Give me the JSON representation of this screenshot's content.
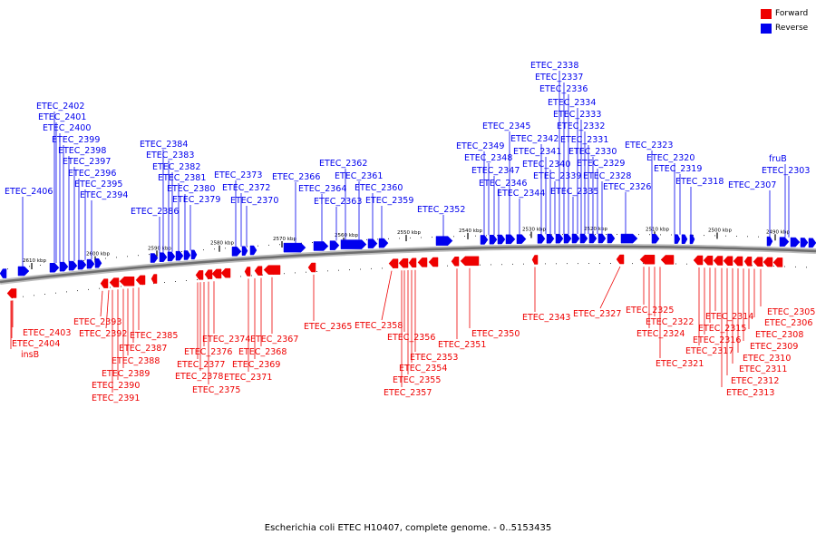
{
  "legend": [
    {
      "label": "Forward",
      "color": "#ee0000"
    },
    {
      "label": "Reverse",
      "color": "#0000ee"
    }
  ],
  "caption": "Escherichia coli ETEC H10407, complete genome. - 0..5153435",
  "colors": {
    "forward": "#ee0000",
    "reverse": "#0000ee",
    "backbone": "#808080"
  },
  "scale_ticks": [
    "2610 kbp",
    "2600 kbp",
    "2590 kbp",
    "2580 kbp",
    "2570 kbp",
    "2560 kbp",
    "2550 kbp",
    "2540 kbp",
    "2530 kbp",
    "2520 kbp",
    "2510 kbp",
    "2500 kbp",
    "2490 kbp"
  ],
  "reverse_labels": [
    "ETEC_2406",
    "ETEC_2402",
    "ETEC_2401",
    "ETEC_2400",
    "ETEC_2399",
    "ETEC_2398",
    "ETEC_2397",
    "ETEC_2396",
    "ETEC_2395",
    "ETEC_2394",
    "ETEC_2386",
    "ETEC_2384",
    "ETEC_2383",
    "ETEC_2382",
    "ETEC_2381",
    "ETEC_2380",
    "ETEC_2379",
    "ETEC_2373",
    "ETEC_2372",
    "ETEC_2370",
    "ETEC_2366",
    "ETEC_2364",
    "ETEC_2363",
    "ETEC_2362",
    "ETEC_2361",
    "ETEC_2360",
    "ETEC_2359",
    "ETEC_2352",
    "ETEC_2349",
    "ETEC_2348",
    "ETEC_2347",
    "ETEC_2346",
    "ETEC_2345",
    "ETEC_2344",
    "ETEC_2342",
    "ETEC_2341",
    "ETEC_2340",
    "ETEC_2339",
    "ETEC_2338",
    "ETEC_2337",
    "ETEC_2336",
    "ETEC_2335",
    "ETEC_2334",
    "ETEC_2333",
    "ETEC_2332",
    "ETEC_2331",
    "ETEC_2330",
    "ETEC_2329",
    "ETEC_2328",
    "ETEC_2326",
    "ETEC_2323",
    "ETEC_2320",
    "ETEC_2319",
    "ETEC_2318",
    "ETEC_2307",
    "fruB",
    "ETEC_2303"
  ],
  "forward_labels": [
    "ETEC_2403",
    "ETEC_2404",
    "insB",
    "ETEC_2393",
    "ETEC_2392",
    "ETEC_2391",
    "ETEC_2390",
    "ETEC_2389",
    "ETEC_2388",
    "ETEC_2387",
    "ETEC_2385",
    "ETEC_2377",
    "ETEC_2378",
    "ETEC_2376",
    "ETEC_2375",
    "ETEC_2374",
    "ETEC_2371",
    "ETEC_2369",
    "ETEC_2368",
    "ETEC_2367",
    "ETEC_2365",
    "ETEC_2358",
    "ETEC_2357",
    "ETEC_2356",
    "ETEC_2355",
    "ETEC_2354",
    "ETEC_2353",
    "ETEC_2351",
    "ETEC_2350",
    "ETEC_2343",
    "ETEC_2327",
    "ETEC_2325",
    "ETEC_2324",
    "ETEC_2322",
    "ETEC_2321",
    "ETEC_2317",
    "ETEC_2316",
    "ETEC_2315",
    "ETEC_2314",
    "ETEC_2313",
    "ETEC_2312",
    "ETEC_2311",
    "ETEC_2310",
    "ETEC_2309",
    "ETEC_2308",
    "ETEC_2306",
    "ETEC_2305"
  ]
}
